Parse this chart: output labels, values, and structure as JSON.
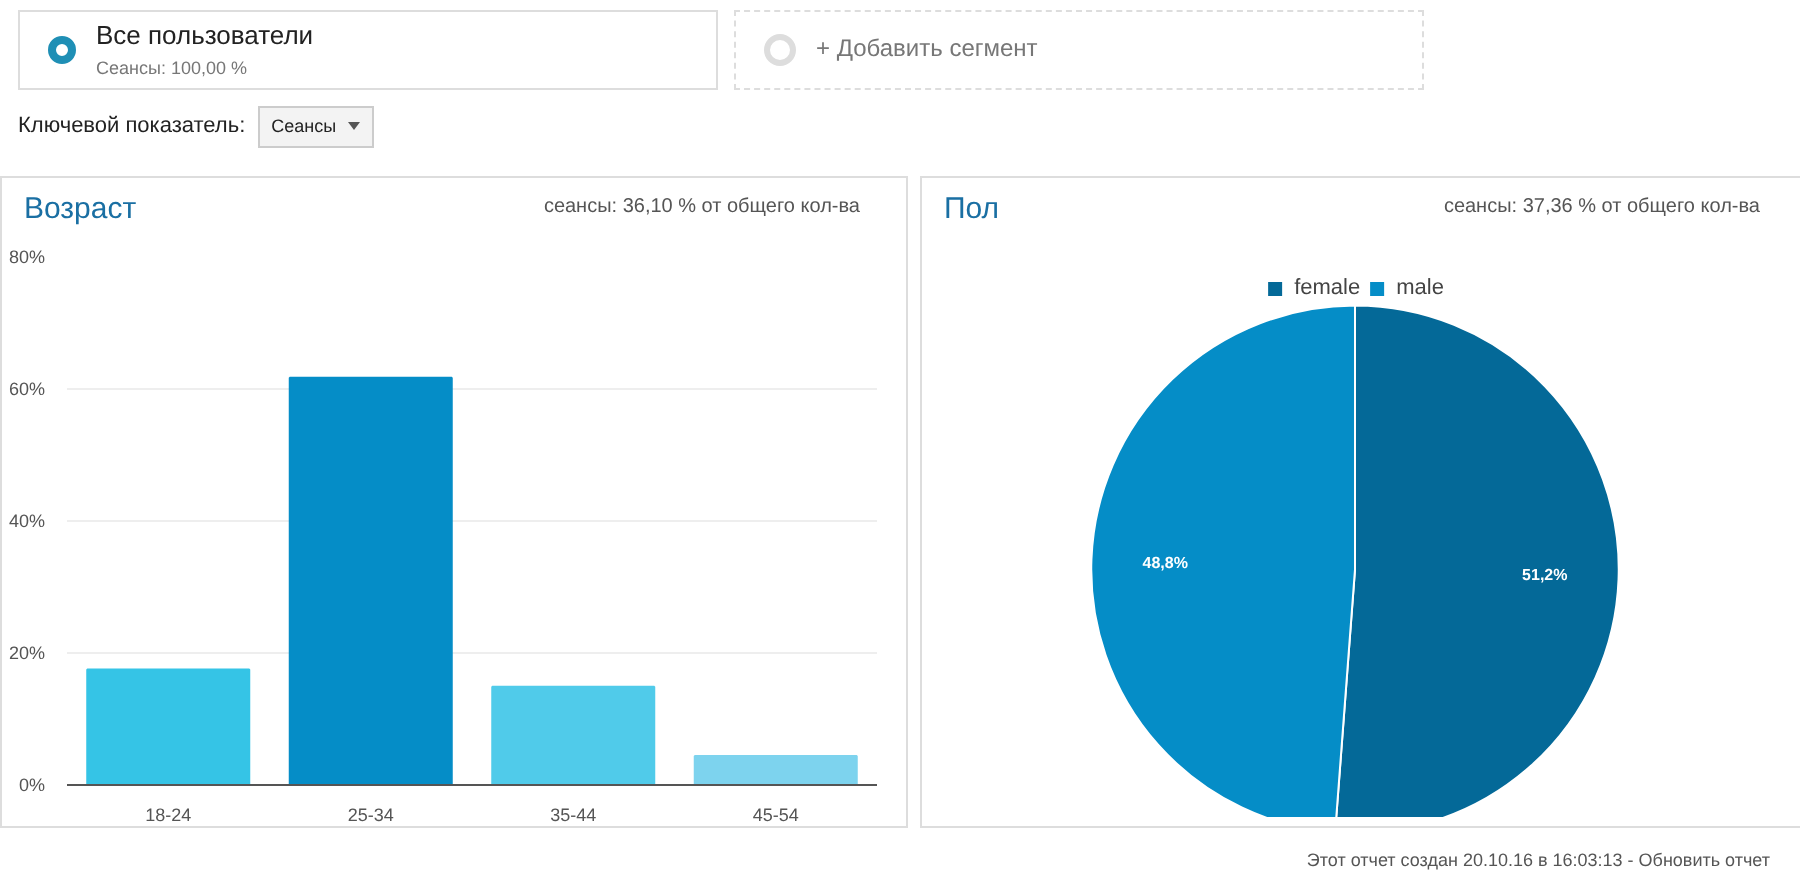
{
  "chart_data": [
    {
      "type": "bar",
      "title": "Возраст",
      "subtitle": "сеансы: 36,10 % от общего кол-ва",
      "annotations": [
        "Все пользователи",
        "Сеансы: 100,00 %",
        "+ Добавить сегмент",
        "Ключевой показатель:",
        "Сеансы"
      ],
      "categories": [
        "18-24",
        "25-34",
        "35-44",
        "45-54"
      ],
      "values": [
        17.5,
        61.7,
        14.9,
        4.4
      ],
      "colors": [
        "#35c4e6",
        "#058dc7",
        "#50cbea",
        "#7dd3ee"
      ],
      "ylim": [
        0,
        80
      ],
      "yticks": [
        {
          "value": 0,
          "label": "0%"
        },
        {
          "value": 20,
          "label": "20%"
        },
        {
          "value": 40,
          "label": "40%"
        },
        {
          "value": 60,
          "label": "60%"
        },
        {
          "value": 80,
          "label": "80%"
        }
      ],
      "grid": "y"
    },
    {
      "type": "pie",
      "title": "Пол",
      "subtitle": "сеансы: 37,36 % от общего кол-ва",
      "annotations": [
        "Этот отчет создан 20.10.16 в 16:03:13 - Обновить отчет"
      ],
      "categories": [
        "female",
        "male"
      ],
      "values": [
        51.2,
        48.8
      ],
      "colors": [
        "#046998",
        "#058dc7"
      ],
      "value_labels": [
        "51,2%",
        "48,8%"
      ],
      "legend": "top"
    }
  ]
}
